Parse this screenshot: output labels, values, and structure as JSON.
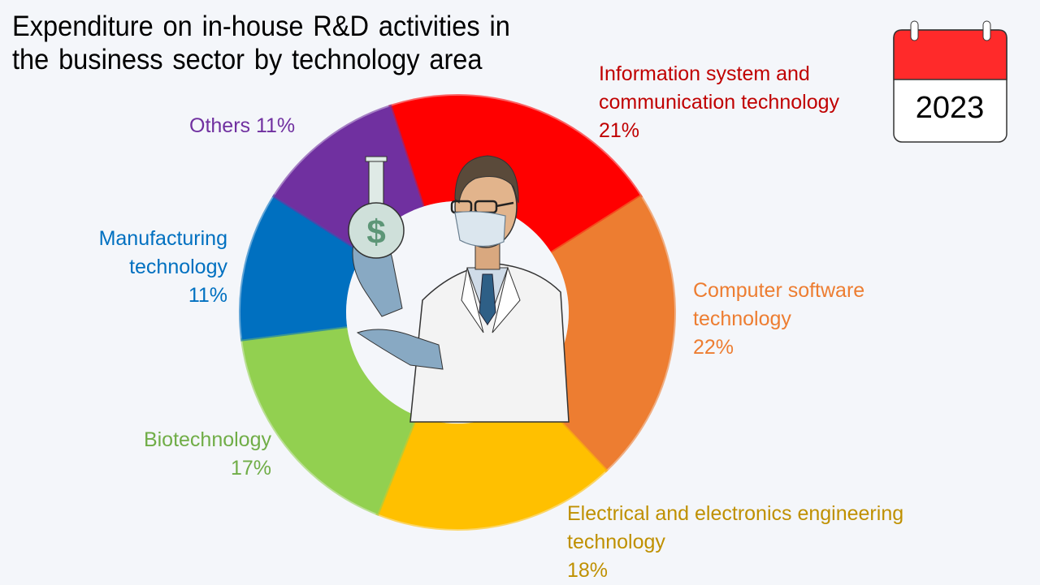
{
  "title": {
    "line1": "Expenditure on in-house R&D activities in",
    "line2": "the business sector by technology area"
  },
  "calendar": {
    "year": "2023",
    "icon": "calendar-icon"
  },
  "illustration": {
    "icon": "scientist-holding-money-flask-icon"
  },
  "labels": {
    "ict": {
      "line1": "Information system and",
      "line2": "communication technology",
      "pct": "21%",
      "color": "#c00000"
    },
    "software": {
      "line1": "Computer software",
      "line2": "technology",
      "pct": "22%",
      "color": "#ed7d31"
    },
    "electrical": {
      "line1": "Electrical and electronics engineering",
      "line2": "technology",
      "pct": "18%",
      "color": "#bf9000"
    },
    "bio": {
      "line1": "Biotechnology",
      "pct": "17%",
      "color": "#70ad47"
    },
    "manufacturing": {
      "line1": "Manufacturing",
      "line2": "technology",
      "pct": "11%",
      "color": "#0070c0"
    },
    "others": {
      "line1": "Others 11%",
      "color": "#7030a0"
    }
  },
  "chart_data": {
    "type": "pie",
    "variant": "donut",
    "title": "Expenditure on in-house R&D activities in the business sector by technology area",
    "subtitle": "2023",
    "unit": "%",
    "categories": [
      "Information system and communication technology",
      "Computer software technology",
      "Electrical and electronics engineering technology",
      "Biotechnology",
      "Manufacturing technology",
      "Others"
    ],
    "values": [
      21,
      22,
      18,
      17,
      11,
      11
    ],
    "colors": [
      "#ff0000",
      "#ed7d31",
      "#ffc000",
      "#92d050",
      "#0070c0",
      "#7030a0"
    ],
    "start_angle_deg": -18,
    "direction": "clockwise",
    "legend": "none (direct labels)"
  }
}
